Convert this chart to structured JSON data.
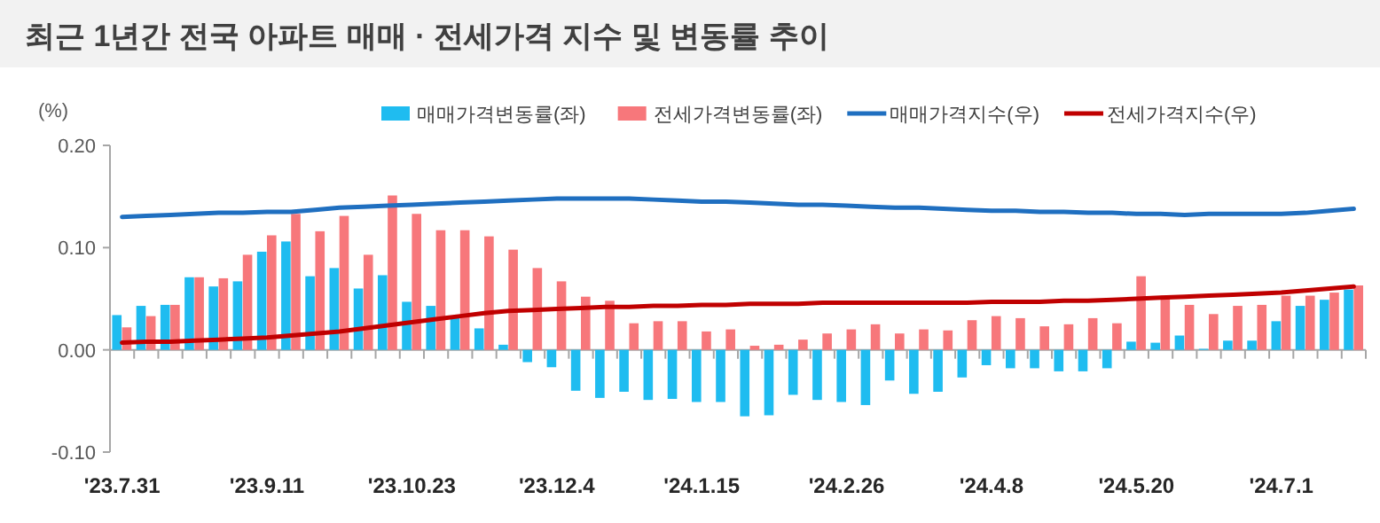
{
  "chart_data": {
    "type": "bar",
    "title": "최근 1년간 전국 아파트 매매 · 전세가격 지수 및 변동률 추이",
    "ylabel": "(%)",
    "categories": [
      "'23.7.31",
      null,
      null,
      null,
      null,
      null,
      "'23.9.11",
      null,
      null,
      null,
      null,
      null,
      "'23.10.23",
      null,
      null,
      null,
      null,
      null,
      "'23.12.4",
      null,
      null,
      null,
      null,
      null,
      "'24.1.15",
      null,
      null,
      null,
      null,
      null,
      "'24.2.26",
      null,
      null,
      null,
      null,
      null,
      "'24.4.8",
      null,
      null,
      null,
      null,
      null,
      "'24.5.20",
      null,
      null,
      null,
      null,
      null,
      "'24.7.1",
      null,
      null,
      null
    ],
    "series": [
      {
        "name": "매매가격변동률(좌)",
        "color": "#1fbcf0",
        "values": [
          0.034,
          0.043,
          0.044,
          0.071,
          0.062,
          0.067,
          0.096,
          0.106,
          0.072,
          0.08,
          0.06,
          0.073,
          0.047,
          0.043,
          0.031,
          0.021,
          0.005,
          -0.012,
          -0.017,
          -0.04,
          -0.047,
          -0.041,
          -0.049,
          -0.048,
          -0.051,
          -0.051,
          -0.065,
          -0.064,
          -0.044,
          -0.049,
          -0.051,
          -0.054,
          -0.03,
          -0.043,
          -0.041,
          -0.027,
          -0.015,
          -0.018,
          -0.018,
          -0.021,
          -0.021,
          -0.018,
          0.008,
          0.007,
          0.014,
          0.001,
          0.009,
          0.009,
          0.028,
          0.043,
          0.049,
          0.059
        ]
      },
      {
        "name": "전세가격변동률(좌)",
        "color": "#f7777b",
        "values": [
          0.022,
          0.033,
          0.044,
          0.071,
          0.07,
          0.093,
          0.112,
          0.133,
          0.116,
          0.131,
          0.093,
          0.151,
          0.133,
          0.117,
          0.117,
          0.111,
          0.098,
          0.08,
          0.067,
          0.052,
          0.048,
          0.026,
          0.028,
          0.028,
          0.018,
          0.02,
          0.004,
          0.005,
          0.01,
          0.016,
          0.02,
          0.025,
          0.016,
          0.02,
          0.019,
          0.029,
          0.033,
          0.031,
          0.023,
          0.025,
          0.031,
          0.026,
          0.072,
          0.053,
          0.044,
          0.035,
          0.043,
          0.044,
          0.053,
          0.053,
          0.056,
          0.063
        ]
      },
      {
        "name": "매매가격지수(우)",
        "type": "line",
        "color": "#1f6fc0",
        "values": [
          0.13,
          0.131,
          0.132,
          0.133,
          0.134,
          0.134,
          0.135,
          0.135,
          0.137,
          0.139,
          0.14,
          0.141,
          0.142,
          0.143,
          0.144,
          0.145,
          0.146,
          0.147,
          0.148,
          0.148,
          0.148,
          0.148,
          0.147,
          0.146,
          0.145,
          0.145,
          0.144,
          0.143,
          0.142,
          0.142,
          0.141,
          0.14,
          0.139,
          0.139,
          0.138,
          0.137,
          0.136,
          0.136,
          0.135,
          0.135,
          0.134,
          0.134,
          0.133,
          0.133,
          0.132,
          0.133,
          0.133,
          0.133,
          0.133,
          0.134,
          0.136,
          0.138
        ]
      },
      {
        "name": "전세가격지수(우)",
        "type": "line",
        "color": "#c00000",
        "values": [
          0.007,
          0.008,
          0.008,
          0.009,
          0.01,
          0.011,
          0.012,
          0.014,
          0.016,
          0.018,
          0.021,
          0.024,
          0.027,
          0.03,
          0.033,
          0.036,
          0.038,
          0.039,
          0.04,
          0.041,
          0.042,
          0.042,
          0.043,
          0.043,
          0.044,
          0.044,
          0.045,
          0.045,
          0.045,
          0.046,
          0.046,
          0.046,
          0.046,
          0.046,
          0.046,
          0.046,
          0.047,
          0.047,
          0.047,
          0.048,
          0.048,
          0.049,
          0.05,
          0.051,
          0.052,
          0.053,
          0.054,
          0.055,
          0.056,
          0.058,
          0.06,
          0.062
        ]
      }
    ],
    "ylim": [
      -0.1,
      0.2
    ],
    "yticks": [
      {
        "value": 0.2,
        "label": "0.20"
      },
      {
        "value": 0.1,
        "label": "0.10"
      },
      {
        "value": 0,
        "label": "0.00"
      },
      {
        "value": -0.1,
        "label": "-0.10"
      }
    ],
    "legend": "top"
  }
}
